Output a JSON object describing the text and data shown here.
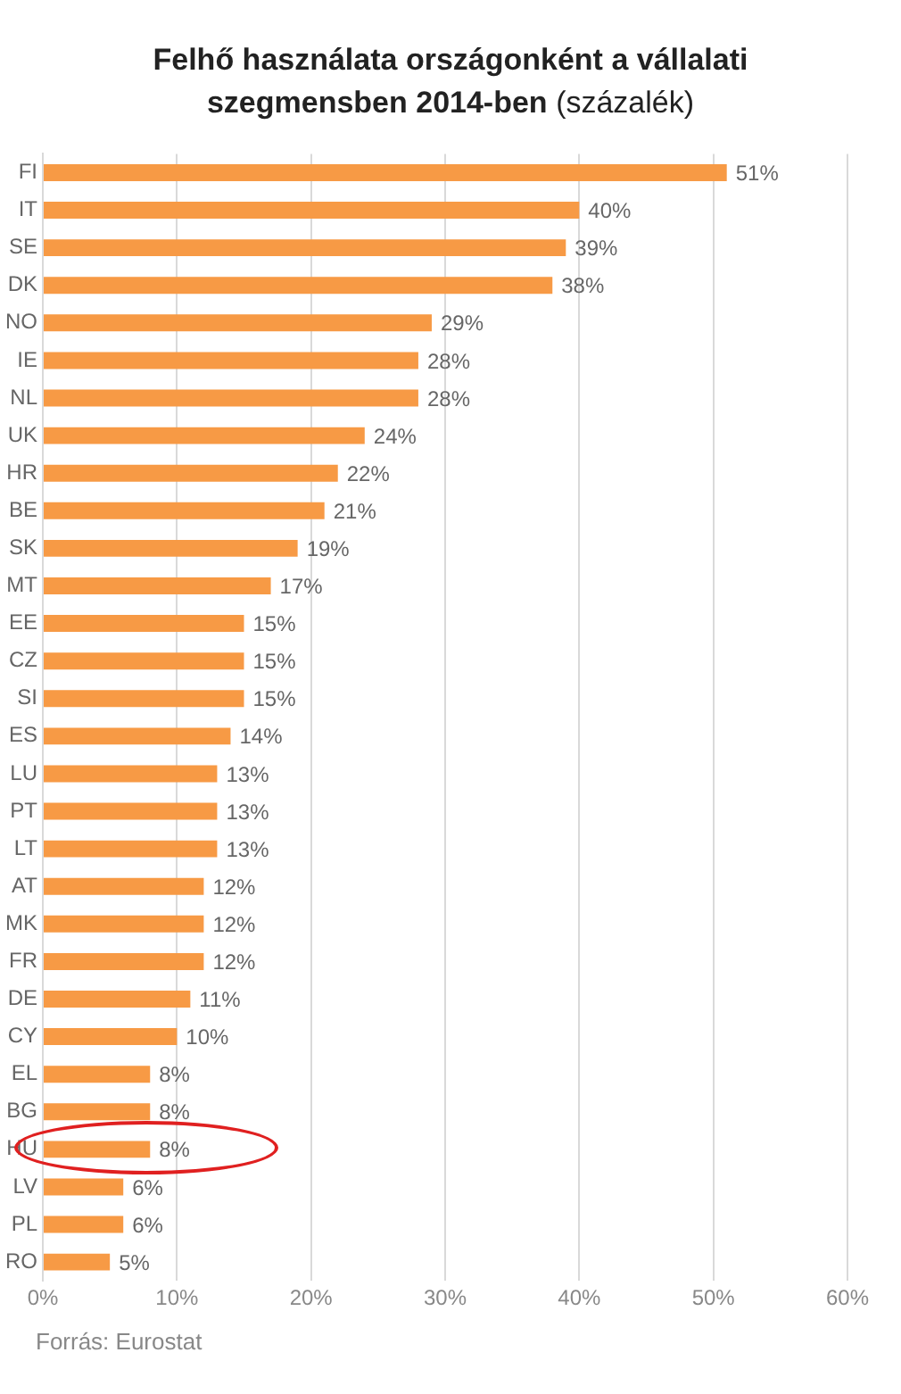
{
  "chart_data": {
    "type": "bar",
    "orientation": "horizontal",
    "title": "Felhő  használata országonként a vállalati szegmensben  2014-ben",
    "subtitle": "(százalék)",
    "categories": [
      "FI",
      "IT",
      "SE",
      "DK",
      "NO",
      "IE",
      "NL",
      "UK",
      "HR",
      "BE",
      "SK",
      "MT",
      "EE",
      "CZ",
      "SI",
      "ES",
      "LU",
      "PT",
      "LT",
      "AT",
      "MK",
      "FR",
      "DE",
      "CY",
      "EL",
      "BG",
      "HU",
      "LV",
      "PL",
      "RO"
    ],
    "values": [
      51,
      40,
      39,
      38,
      29,
      28,
      28,
      24,
      22,
      21,
      19,
      17,
      15,
      15,
      15,
      14,
      13,
      13,
      13,
      12,
      12,
      12,
      11,
      10,
      8,
      8,
      8,
      6,
      6,
      5
    ],
    "value_labels": [
      "51%",
      "40%",
      "39%",
      "38%",
      "29%",
      "28%",
      "28%",
      "24%",
      "22%",
      "21%",
      "19%",
      "17%",
      "15%",
      "15%",
      "15%",
      "14%",
      "13%",
      "13%",
      "13%",
      "12%",
      "12%",
      "12%",
      "11%",
      "10%",
      "8%",
      "8%",
      "8%",
      "6%",
      "6%",
      "5%"
    ],
    "color": "#f79a45",
    "xlim": [
      0,
      60
    ],
    "xticks": [
      {
        "value": 0,
        "label": "0%"
      },
      {
        "value": 10,
        "label": "10%"
      },
      {
        "value": 20,
        "label": "20%"
      },
      {
        "value": 30,
        "label": "30%"
      },
      {
        "value": 40,
        "label": "40%"
      },
      {
        "value": 50,
        "label": "50%"
      },
      {
        "value": 60,
        "label": "60%"
      }
    ],
    "grid": "x",
    "legend": false,
    "annotations": [
      "Forrás: Eurostat"
    ]
  }
}
